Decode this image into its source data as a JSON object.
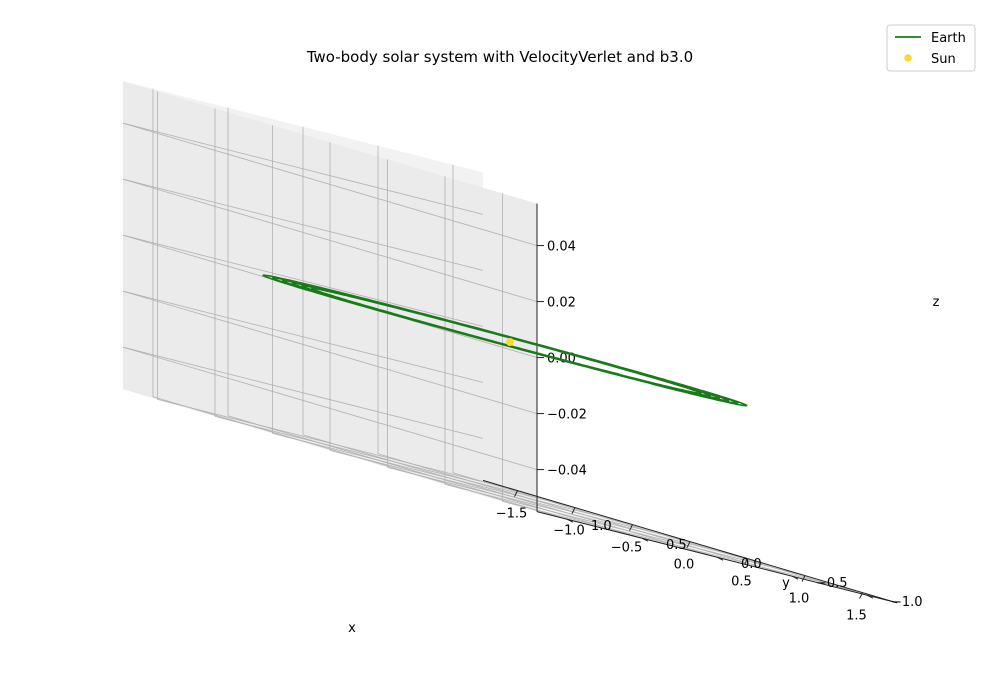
{
  "chart_data": {
    "type": "line",
    "projection": "3d",
    "title": "Two-body solar system with VelocityVerlet and b3.0",
    "xlabel": "x",
    "ylabel": "y",
    "zlabel": "z",
    "xlim": [
      -1.8,
      1.8
    ],
    "ylim": [
      -1.2,
      1.2
    ],
    "zlim": [
      -0.055,
      0.055
    ],
    "grid": true,
    "legend_position": "top-right",
    "x_ticks": [
      "−1.5",
      "−1.0",
      "−0.5",
      "0.0",
      "0.5",
      "1.0",
      "1.5"
    ],
    "y_ticks": [
      "−1.0",
      "−0.5",
      "0.0",
      "0.5",
      "1.0"
    ],
    "z_ticks": [
      "−0.04",
      "−0.02",
      "0.00",
      "0.02",
      "0.04"
    ],
    "series": [
      {
        "name": "Earth",
        "kind": "line",
        "color": "#1a7a1a",
        "description_values": {
          "orbit_center": [
            0.0,
            0.0,
            0.0
          ],
          "semi_major_axis_start": 1.0,
          "semi_major_axis_end": 1.3,
          "eccentricity": 0.05,
          "revolutions": 6,
          "z": 0.0
        }
      },
      {
        "name": "Sun",
        "kind": "scatter",
        "color": "#fdd835",
        "points": [
          [
            0.0,
            0.0,
            0.0
          ]
        ]
      }
    ]
  },
  "legend": {
    "earth_label": "Earth",
    "sun_label": "Sun"
  },
  "colors": {
    "earth": "#1a7a1a",
    "sun": "#fdd835",
    "pane_left": "#f2f2f2",
    "pane_right": "#ebebeb",
    "pane_floor": "#f5f5f5",
    "grid": "#b0b0b0"
  }
}
